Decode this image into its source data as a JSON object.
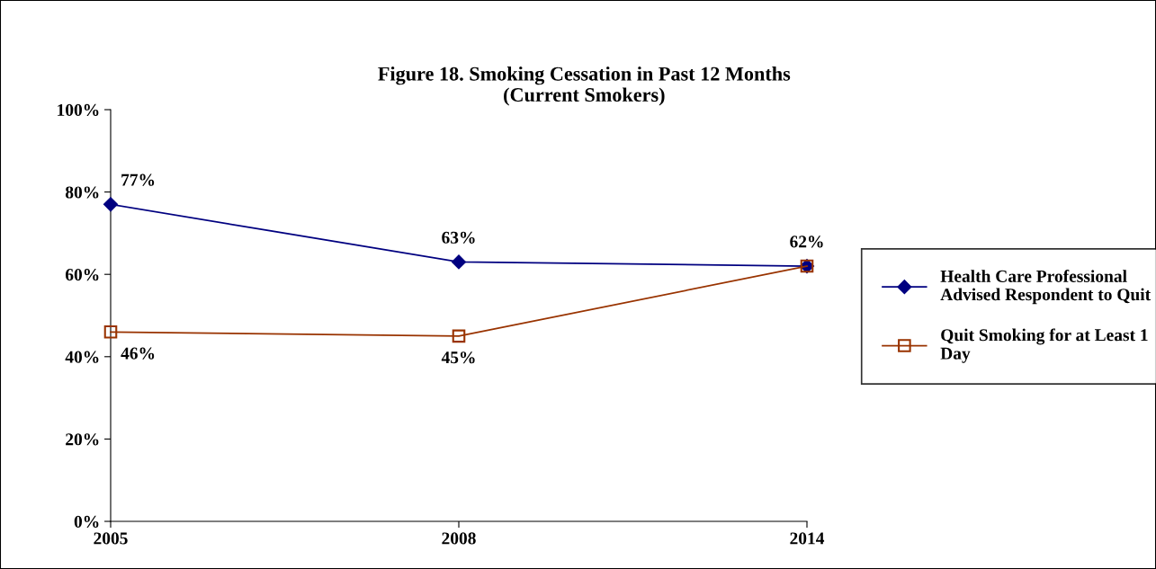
{
  "chart_data": {
    "type": "line",
    "title": "Figure 18. Smoking Cessation in Past 12 Months\n(Current Smokers)",
    "categories": [
      "2005",
      "2008",
      "2014"
    ],
    "series": [
      {
        "name": "Health Care Professional Advised Respondent to Quit",
        "color": "#000080",
        "marker": "diamond",
        "values": [
          77,
          63,
          62
        ],
        "value_labels": [
          "77%",
          "63%",
          "62%"
        ]
      },
      {
        "name": "Quit Smoking for at Least 1 Day",
        "color": "#993300",
        "marker": "square",
        "values": [
          46,
          45,
          62
        ],
        "value_labels": [
          "46%",
          "45%",
          null
        ]
      }
    ],
    "ylim": [
      0,
      100
    ],
    "yticks": [
      {
        "value": 0,
        "label": "0%"
      },
      {
        "value": 20,
        "label": "20%"
      },
      {
        "value": 40,
        "label": "40%"
      },
      {
        "value": 60,
        "label": "60%"
      },
      {
        "value": 80,
        "label": "80%"
      },
      {
        "value": 100,
        "label": "100%"
      }
    ],
    "grid": false,
    "legend": "right",
    "line_style": "solid"
  }
}
